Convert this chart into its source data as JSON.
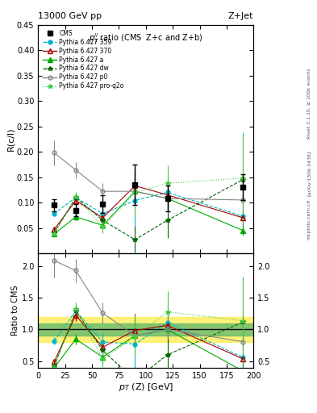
{
  "title_top": "13000 GeV pp",
  "title_right": "Z+Jet",
  "subplot_title": "$p_T^{ll}$ ratio (CMS  Z+c and Z+b)",
  "right_label": "Rivet 3.1.10, ≥ 100k events",
  "arxiv_label": "[arXiv:1306.3436]",
  "mcplots_label": "mcplots.cern.ch",
  "ylabel_main": "R(c/l)",
  "ylabel_ratio": "Ratio to CMS",
  "xlabel": "$p_T$ (Z) [GeV]",
  "xlim": [
    0,
    200
  ],
  "ylim_main": [
    0,
    0.45
  ],
  "ylim_ratio": [
    0.4,
    2.2
  ],
  "yticks_main": [
    0.05,
    0.1,
    0.15,
    0.2,
    0.25,
    0.3,
    0.35,
    0.4,
    0.45
  ],
  "yticks_ratio": [
    0.5,
    1.0,
    1.5,
    2.0
  ],
  "cms_x": [
    15,
    35,
    60,
    90,
    120,
    190
  ],
  "cms_y": [
    0.095,
    0.085,
    0.097,
    0.135,
    0.108,
    0.13
  ],
  "cms_yerr": [
    0.012,
    0.012,
    0.018,
    0.04,
    0.025,
    0.025
  ],
  "p359_x": [
    15,
    35,
    60,
    90,
    120,
    190
  ],
  "p359_y": [
    0.078,
    0.11,
    0.078,
    0.104,
    0.12,
    0.073
  ],
  "p359_yerr": [
    0.005,
    0.008,
    0.015,
    0.06,
    0.035,
    0.035
  ],
  "p370_x": [
    15,
    35,
    60,
    90,
    120,
    190
  ],
  "p370_y": [
    0.047,
    0.104,
    0.07,
    0.133,
    0.115,
    0.07
  ],
  "p370_yerr": [
    0.004,
    0.008,
    0.012,
    0.035,
    0.018,
    0.012
  ],
  "pa_x": [
    15,
    35,
    60,
    90,
    120,
    190
  ],
  "pa_y": [
    0.038,
    0.072,
    0.055,
    0.122,
    0.108,
    0.045
  ],
  "pa_yerr": [
    0.003,
    0.007,
    0.01,
    0.035,
    0.022,
    0.01
  ],
  "pdw_x": [
    15,
    35,
    60,
    90,
    120,
    190
  ],
  "pdw_y": [
    0.04,
    0.11,
    0.065,
    0.027,
    0.065,
    0.145
  ],
  "pdw_yerr": [
    0.003,
    0.008,
    0.015,
    0.025,
    0.035,
    0.09
  ],
  "pp0_x": [
    15,
    35,
    60,
    90,
    120,
    190
  ],
  "pp0_y": [
    0.198,
    0.164,
    0.122,
    0.122,
    0.108,
    0.105
  ],
  "pp0_yerr": [
    0.025,
    0.016,
    0.016,
    0.02,
    0.016,
    0.012
  ],
  "pproq2o_x": [
    15,
    35,
    60,
    90,
    120,
    190
  ],
  "pproq2o_y": [
    0.038,
    0.112,
    0.052,
    0.12,
    0.138,
    0.148
  ],
  "pproq2o_yerr": [
    0.003,
    0.009,
    0.012,
    0.045,
    0.035,
    0.09
  ],
  "cms_color": "#000000",
  "p359_color": "#00b4c8",
  "p370_color": "#aa0000",
  "pa_color": "#00aa00",
  "pdw_color": "#006600",
  "pp0_color": "#888888",
  "pproq2o_color": "#44cc44",
  "band_green_lo": 0.9,
  "band_green_hi": 1.1,
  "band_yellow_lo": 0.8,
  "band_yellow_hi": 1.2
}
